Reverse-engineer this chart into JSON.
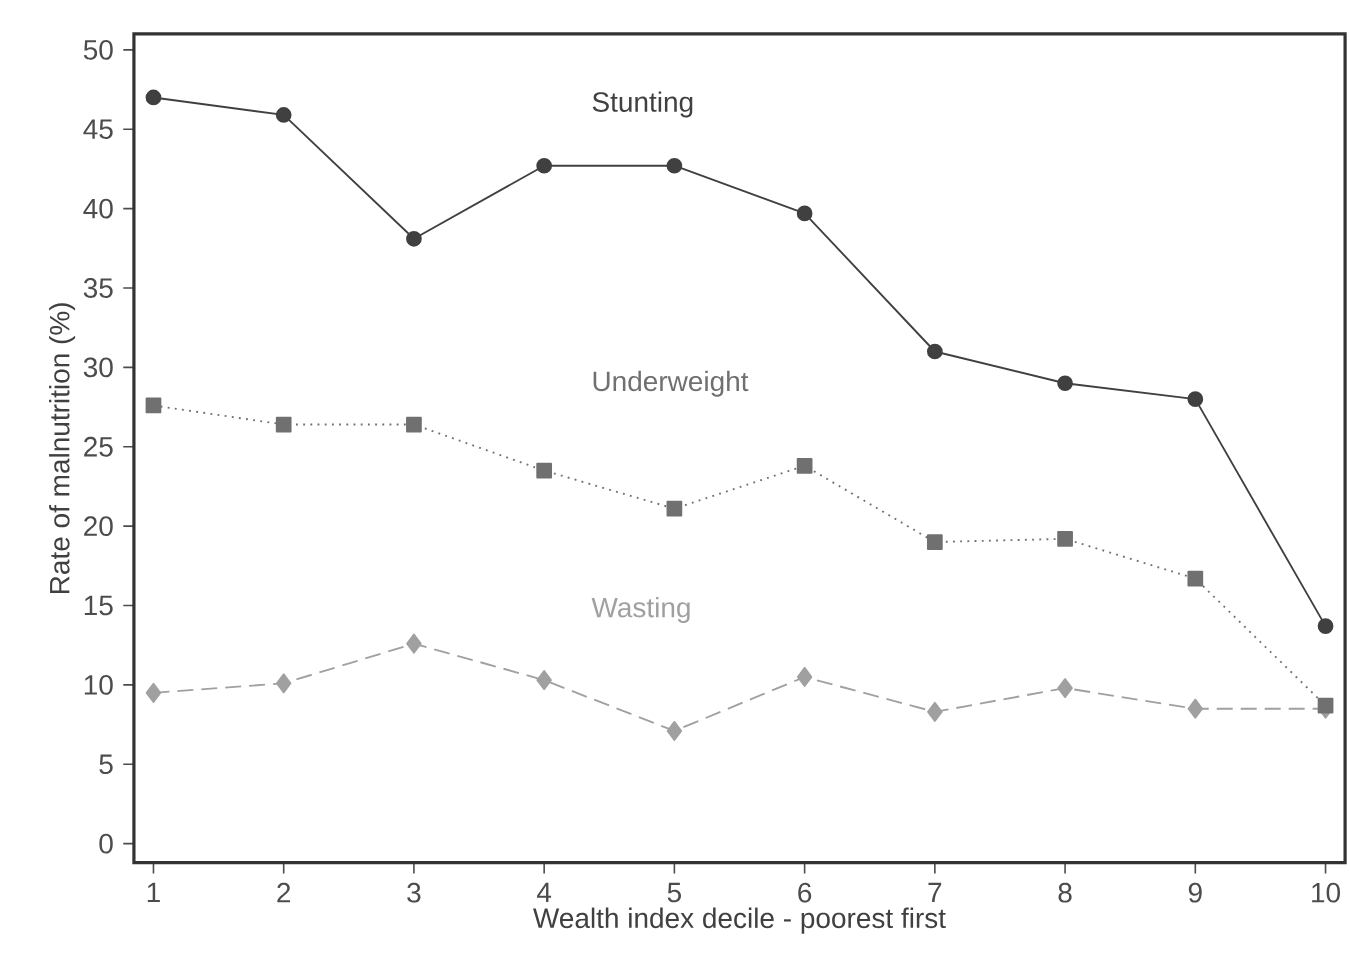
{
  "chart_data": {
    "type": "line",
    "xlabel": "Wealth index decile - poorest first",
    "ylabel": "Rate of malnutrition (%)",
    "x": [
      1,
      2,
      3,
      4,
      5,
      6,
      7,
      8,
      9,
      10
    ],
    "series": [
      {
        "name": "Stunting",
        "color": "#404040",
        "marker": "circle",
        "line_style": "solid",
        "values": [
          47,
          45.9,
          38.1,
          42.7,
          42.7,
          39.7,
          31,
          29,
          28,
          13.7
        ]
      },
      {
        "name": "Underweight",
        "color": "#707070",
        "marker": "square",
        "line_style": "dotted",
        "values": [
          27.6,
          26.4,
          26.4,
          23.5,
          21.1,
          23.8,
          19,
          19.2,
          16.7,
          8.7
        ]
      },
      {
        "name": "Wasting",
        "color": "#a0a0a0",
        "marker": "diamond",
        "line_style": "dashed",
        "values": [
          9.5,
          10.1,
          12.6,
          10.3,
          7.1,
          10.5,
          8.3,
          9.8,
          8.5,
          8.5
        ]
      }
    ],
    "xlim": [
      0.85,
      10.15
    ],
    "ylim": [
      -1.2,
      51
    ],
    "xticks": [
      1,
      2,
      3,
      4,
      5,
      6,
      7,
      8,
      9,
      10
    ],
    "yticks": [
      0,
      5,
      10,
      15,
      20,
      25,
      30,
      35,
      40,
      45,
      50
    ],
    "grid": false,
    "legend": false
  }
}
